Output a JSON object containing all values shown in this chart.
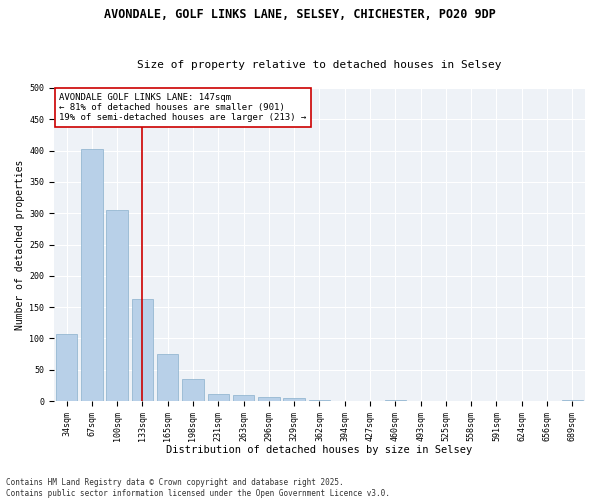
{
  "title1": "AVONDALE, GOLF LINKS LANE, SELSEY, CHICHESTER, PO20 9DP",
  "title2": "Size of property relative to detached houses in Selsey",
  "xlabel": "Distribution of detached houses by size in Selsey",
  "ylabel": "Number of detached properties",
  "categories": [
    "34sqm",
    "67sqm",
    "100sqm",
    "133sqm",
    "165sqm",
    "198sqm",
    "231sqm",
    "263sqm",
    "296sqm",
    "329sqm",
    "362sqm",
    "394sqm",
    "427sqm",
    "460sqm",
    "493sqm",
    "525sqm",
    "558sqm",
    "591sqm",
    "624sqm",
    "656sqm",
    "689sqm"
  ],
  "values": [
    107,
    402,
    305,
    163,
    76,
    36,
    12,
    10,
    7,
    5,
    2,
    0,
    0,
    2,
    0,
    0,
    0,
    0,
    0,
    0,
    2
  ],
  "bar_color": "#b8d0e8",
  "bar_edge_color": "#8ab0cc",
  "vline_x_index": 3,
  "vline_color": "#cc0000",
  "annotation_text": "AVONDALE GOLF LINKS LANE: 147sqm\n← 81% of detached houses are smaller (901)\n19% of semi-detached houses are larger (213) →",
  "annotation_box_color": "#ffffff",
  "annotation_box_edge_color": "#cc0000",
  "ylim": [
    0,
    500
  ],
  "yticks": [
    0,
    50,
    100,
    150,
    200,
    250,
    300,
    350,
    400,
    450,
    500
  ],
  "footer1": "Contains HM Land Registry data © Crown copyright and database right 2025.",
  "footer2": "Contains public sector information licensed under the Open Government Licence v3.0.",
  "bg_color": "#eef2f7",
  "title1_fontsize": 8.5,
  "title2_fontsize": 8,
  "xlabel_fontsize": 7.5,
  "ylabel_fontsize": 7,
  "tick_fontsize": 6,
  "annotation_fontsize": 6.5,
  "footer_fontsize": 5.5
}
